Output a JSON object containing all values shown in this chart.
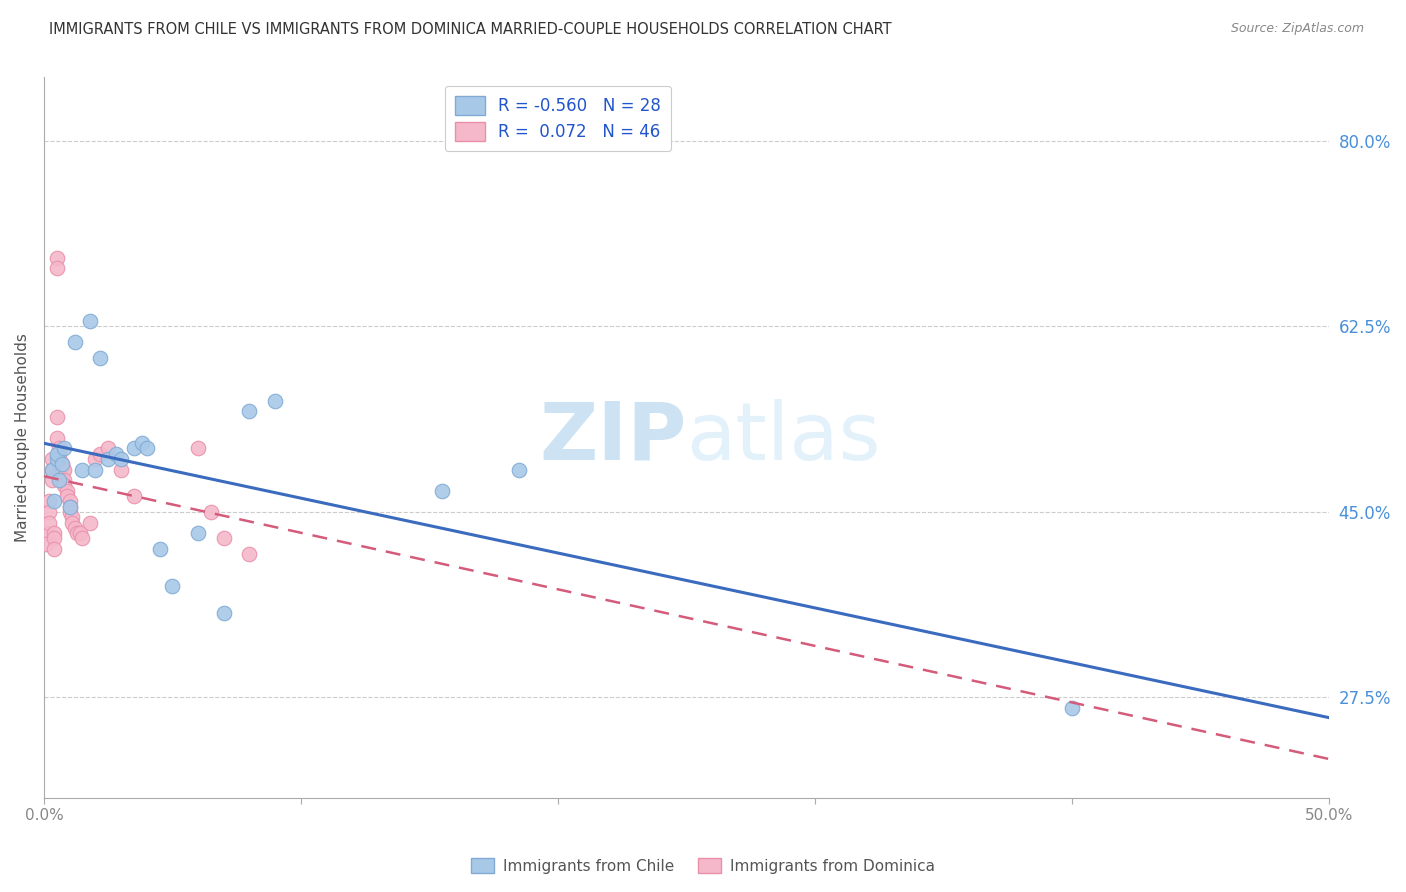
{
  "title": "IMMIGRANTS FROM CHILE VS IMMIGRANTS FROM DOMINICA MARRIED-COUPLE HOUSEHOLDS CORRELATION CHART",
  "source": "Source: ZipAtlas.com",
  "ylabel": "Married-couple Households",
  "y_ticks": [
    0.275,
    0.45,
    0.625,
    0.8
  ],
  "y_tick_labels": [
    "27.5%",
    "45.0%",
    "62.5%",
    "80.0%"
  ],
  "xlim": [
    0.0,
    0.5
  ],
  "ylim": [
    0.18,
    0.86
  ],
  "chile_R": -0.56,
  "chile_N": 28,
  "dominica_R": 0.072,
  "dominica_N": 46,
  "chile_color": "#a8c8e8",
  "chile_edge_color": "#80aad4",
  "dominica_color": "#f5b8ca",
  "dominica_edge_color": "#e890aa",
  "chile_line_color": "#3a6bbf",
  "dominica_line_color": "#d45b7a",
  "watermark_color": "#cce0f0",
  "grid_color": "#cccccc",
  "title_color": "#333333",
  "right_axis_color": "#4a90d9",
  "legend_label_color": "#2255cc",
  "bottom_label_color": "#555555",
  "chile_scatter_x": [
    0.003,
    0.004,
    0.005,
    0.005,
    0.006,
    0.007,
    0.008,
    0.01,
    0.012,
    0.015,
    0.018,
    0.02,
    0.022,
    0.025,
    0.028,
    0.03,
    0.035,
    0.038,
    0.04,
    0.045,
    0.05,
    0.06,
    0.07,
    0.08,
    0.09,
    0.155,
    0.185,
    0.4
  ],
  "chile_scatter_y": [
    0.49,
    0.46,
    0.5,
    0.505,
    0.48,
    0.495,
    0.51,
    0.455,
    0.61,
    0.49,
    0.63,
    0.49,
    0.595,
    0.5,
    0.505,
    0.5,
    0.51,
    0.515,
    0.51,
    0.415,
    0.38,
    0.43,
    0.355,
    0.545,
    0.555,
    0.47,
    0.49,
    0.265
  ],
  "dominica_scatter_x": [
    0.001,
    0.001,
    0.002,
    0.002,
    0.002,
    0.003,
    0.003,
    0.003,
    0.004,
    0.004,
    0.004,
    0.005,
    0.005,
    0.005,
    0.005,
    0.006,
    0.006,
    0.006,
    0.006,
    0.007,
    0.007,
    0.007,
    0.008,
    0.008,
    0.008,
    0.009,
    0.009,
    0.01,
    0.01,
    0.01,
    0.011,
    0.011,
    0.012,
    0.013,
    0.014,
    0.015,
    0.018,
    0.02,
    0.022,
    0.025,
    0.03,
    0.035,
    0.06,
    0.065,
    0.07,
    0.08
  ],
  "dominica_scatter_y": [
    0.43,
    0.42,
    0.46,
    0.45,
    0.44,
    0.5,
    0.49,
    0.48,
    0.43,
    0.425,
    0.415,
    0.69,
    0.68,
    0.54,
    0.52,
    0.51,
    0.505,
    0.5,
    0.49,
    0.495,
    0.49,
    0.48,
    0.49,
    0.48,
    0.475,
    0.47,
    0.465,
    0.46,
    0.455,
    0.45,
    0.445,
    0.44,
    0.435,
    0.43,
    0.43,
    0.425,
    0.44,
    0.5,
    0.505,
    0.51,
    0.49,
    0.465,
    0.51,
    0.45,
    0.425,
    0.41
  ]
}
